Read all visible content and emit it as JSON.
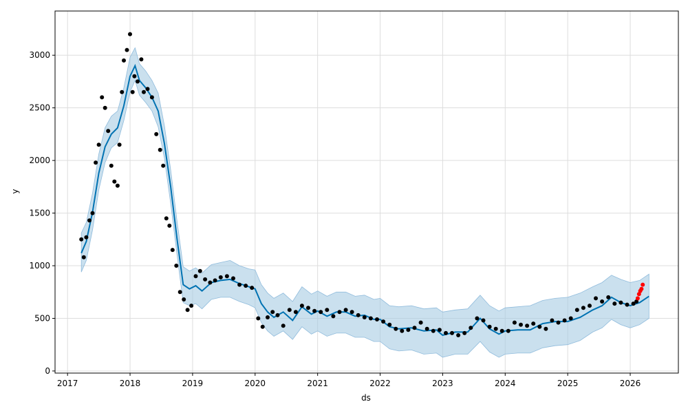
{
  "chart_data": {
    "type": "scatter",
    "title": "",
    "xlabel": "ds",
    "ylabel": "y",
    "xlim": [
      2016.8,
      2026.77
    ],
    "ylim": [
      -20,
      3420
    ],
    "grid": true,
    "x_ticks": [
      {
        "value": 2017,
        "label": "2017"
      },
      {
        "value": 2018,
        "label": "2018"
      },
      {
        "value": 2019,
        "label": "2019"
      },
      {
        "value": 2020,
        "label": "2020"
      },
      {
        "value": 2021,
        "label": "2021"
      },
      {
        "value": 2022,
        "label": "2022"
      },
      {
        "value": 2023,
        "label": "2023"
      },
      {
        "value": 2024,
        "label": "2024"
      },
      {
        "value": 2025,
        "label": "2025"
      },
      {
        "value": 2026,
        "label": "2026"
      }
    ],
    "y_ticks": [
      {
        "value": 0,
        "label": "0"
      },
      {
        "value": 500,
        "label": "500"
      },
      {
        "value": 1000,
        "label": "1000"
      },
      {
        "value": 1500,
        "label": "1500"
      },
      {
        "value": 2000,
        "label": "2000"
      },
      {
        "value": 2500,
        "label": "2500"
      },
      {
        "value": 3000,
        "label": "3000"
      }
    ],
    "colors": {
      "observed": "#000000",
      "forecast_line": "#0072B2",
      "interval_fill": "#A6CBE3",
      "recent_points": "#FF0000",
      "grid": "#DDDDDD"
    },
    "forecast": {
      "x": [
        2017.22,
        2017.3,
        2017.4,
        2017.5,
        2017.6,
        2017.7,
        2017.8,
        2017.9,
        2018.0,
        2018.08,
        2018.15,
        2018.25,
        2018.35,
        2018.45,
        2018.55,
        2018.65,
        2018.75,
        2018.85,
        2018.95,
        2019.05,
        2019.15,
        2019.3,
        2019.45,
        2019.6,
        2019.75,
        2019.9,
        2020.0,
        2020.1,
        2020.2,
        2020.3,
        2020.45,
        2020.6,
        2020.75,
        2020.9,
        2021.0,
        2021.15,
        2021.3,
        2021.45,
        2021.6,
        2021.75,
        2021.9,
        2022.0,
        2022.15,
        2022.3,
        2022.5,
        2022.7,
        2022.9,
        2023.0,
        2023.2,
        2023.4,
        2023.6,
        2023.75,
        2023.9,
        2024.0,
        2024.2,
        2024.4,
        2024.6,
        2024.8,
        2025.0,
        2025.2,
        2025.4,
        2025.55,
        2025.7,
        2025.85,
        2026.0,
        2026.15,
        2026.3
      ],
      "yhat": [
        1120,
        1230,
        1510,
        1880,
        2130,
        2250,
        2310,
        2520,
        2800,
        2900,
        2760,
        2690,
        2600,
        2470,
        2160,
        1750,
        1260,
        820,
        780,
        810,
        760,
        840,
        860,
        870,
        830,
        800,
        780,
        640,
        560,
        510,
        560,
        480,
        610,
        540,
        570,
        520,
        560,
        560,
        520,
        530,
        490,
        490,
        420,
        400,
        410,
        380,
        390,
        340,
        370,
        370,
        500,
        400,
        350,
        380,
        390,
        390,
        450,
        470,
        470,
        510,
        580,
        620,
        700,
        650,
        620,
        650,
        710
      ],
      "lower": [
        940,
        1050,
        1340,
        1720,
        1980,
        2120,
        2170,
        2380,
        2650,
        2760,
        2620,
        2550,
        2470,
        2320,
        2020,
        1590,
        1110,
        650,
        620,
        640,
        590,
        680,
        700,
        700,
        660,
        630,
        600,
        460,
        380,
        330,
        380,
        300,
        420,
        350,
        380,
        330,
        360,
        360,
        320,
        320,
        280,
        280,
        210,
        190,
        200,
        160,
        170,
        130,
        160,
        160,
        280,
        180,
        130,
        160,
        170,
        170,
        220,
        240,
        250,
        290,
        370,
        410,
        490,
        440,
        410,
        440,
        500
      ],
      "upper": [
        1310,
        1410,
        1690,
        2060,
        2310,
        2420,
        2470,
        2690,
        2980,
        3070,
        2920,
        2850,
        2760,
        2640,
        2330,
        1910,
        1430,
        990,
        950,
        980,
        930,
        1010,
        1030,
        1050,
        1000,
        970,
        960,
        820,
        740,
        690,
        740,
        660,
        800,
        730,
        760,
        710,
        750,
        750,
        710,
        720,
        680,
        690,
        620,
        610,
        620,
        590,
        600,
        560,
        580,
        590,
        720,
        620,
        570,
        600,
        610,
        620,
        670,
        690,
        700,
        740,
        800,
        840,
        910,
        870,
        840,
        860,
        920
      ]
    },
    "observed": {
      "x": [
        2017.22,
        2017.26,
        2017.3,
        2017.35,
        2017.4,
        2017.45,
        2017.5,
        2017.55,
        2017.6,
        2017.65,
        2017.7,
        2017.75,
        2017.8,
        2017.83,
        2017.87,
        2017.9,
        2017.95,
        2018.0,
        2018.04,
        2018.07,
        2018.12,
        2018.18,
        2018.22,
        2018.28,
        2018.35,
        2018.42,
        2018.48,
        2018.53,
        2018.58,
        2018.63,
        2018.68,
        2018.74,
        2018.8,
        2018.86,
        2018.92,
        2018.98,
        2019.05,
        2019.12,
        2019.2,
        2019.28,
        2019.36,
        2019.45,
        2019.55,
        2019.65,
        2019.75,
        2019.85,
        2019.95,
        2020.05,
        2020.12,
        2020.2,
        2020.28,
        2020.36,
        2020.45,
        2020.55,
        2020.65,
        2020.75,
        2020.85,
        2020.95,
        2021.05,
        2021.15,
        2021.25,
        2021.35,
        2021.45,
        2021.55,
        2021.65,
        2021.75,
        2021.85,
        2021.95,
        2022.05,
        2022.15,
        2022.25,
        2022.35,
        2022.45,
        2022.55,
        2022.65,
        2022.75,
        2022.85,
        2022.95,
        2023.05,
        2023.15,
        2023.25,
        2023.35,
        2023.45,
        2023.55,
        2023.65,
        2023.75,
        2023.85,
        2023.95,
        2024.05,
        2024.15,
        2024.25,
        2024.35,
        2024.45,
        2024.55,
        2024.65,
        2024.75,
        2024.85,
        2024.95,
        2025.05,
        2025.15,
        2025.25,
        2025.35,
        2025.45,
        2025.55,
        2025.65,
        2025.75,
        2025.85,
        2025.95,
        2026.05,
        2026.1
      ],
      "y": [
        1250,
        1080,
        1270,
        1430,
        1500,
        1980,
        2150,
        2600,
        2500,
        2280,
        1950,
        1800,
        1760,
        2150,
        2650,
        2950,
        3050,
        3200,
        2650,
        2800,
        2750,
        2960,
        2650,
        2680,
        2600,
        2250,
        2100,
        1950,
        1450,
        1380,
        1150,
        1000,
        750,
        680,
        580,
        620,
        900,
        950,
        870,
        840,
        860,
        890,
        900,
        880,
        820,
        810,
        790,
        500,
        420,
        510,
        560,
        530,
        430,
        580,
        560,
        620,
        600,
        570,
        560,
        580,
        520,
        560,
        580,
        560,
        530,
        510,
        500,
        490,
        470,
        440,
        400,
        380,
        390,
        410,
        460,
        400,
        380,
        390,
        360,
        360,
        340,
        360,
        410,
        500,
        480,
        420,
        400,
        380,
        380,
        460,
        440,
        430,
        450,
        420,
        400,
        480,
        460,
        480,
        500,
        580,
        600,
        620,
        690,
        660,
        700,
        640,
        650,
        630,
        640,
        660
      ]
    },
    "recent": {
      "x": [
        2026.12,
        2026.14,
        2026.16,
        2026.18,
        2026.2
      ],
      "y": [
        690,
        730,
        760,
        780,
        820
      ]
    }
  }
}
